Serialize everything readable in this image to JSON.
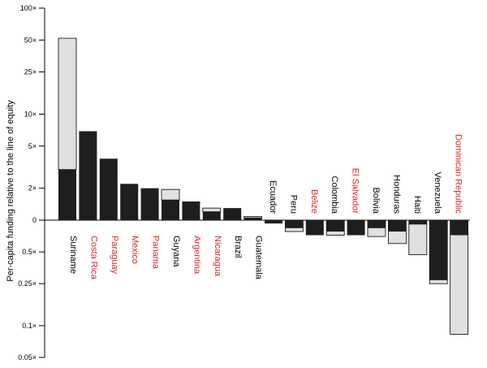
{
  "chart_data": {
    "type": "bar",
    "title": "",
    "xlabel": "",
    "ylabel": "Per-capita funding relative to the line of equity",
    "y_scale": "log",
    "ylim": [
      0.05,
      100
    ],
    "grid": false,
    "legend": "none",
    "y_ticks": [
      {
        "value": 100,
        "label": "100×"
      },
      {
        "value": 50,
        "label": "50×"
      },
      {
        "value": 25,
        "label": "25×"
      },
      {
        "value": 10,
        "label": "10×"
      },
      {
        "value": 5,
        "label": "5×"
      },
      {
        "value": 2,
        "label": "2×"
      },
      {
        "value": 1,
        "label": "0"
      },
      {
        "value": 0.5,
        "label": "0.5×"
      },
      {
        "value": 0.25,
        "label": "0.25×"
      },
      {
        "value": 0.1,
        "label": "0.1×"
      },
      {
        "value": 0.05,
        "label": "0.05×"
      }
    ],
    "categories": [
      "Suriname",
      "Costa Rica",
      "Paraguay",
      "Mexico",
      "Panama",
      "Guyana",
      "Argentina",
      "Nicaragua",
      "Brazil",
      "Guatemala",
      "Ecuador",
      "Peru",
      "Belize",
      "Colombia",
      "El Salvador",
      "Bolivia",
      "Honduras",
      "Haiti",
      "Venezuela",
      "Dominican Republic"
    ],
    "label_colors": [
      "#000000",
      "#d62728",
      "#d62728",
      "#d62728",
      "#d62728",
      "#000000",
      "#d62728",
      "#d62728",
      "#000000",
      "#000000",
      "#000000",
      "#000000",
      "#d62728",
      "#000000",
      "#d62728",
      "#000000",
      "#000000",
      "#000000",
      "#000000",
      "#d62728"
    ],
    "series": [
      {
        "values": [
          3.0,
          6.9,
          3.8,
          2.2,
          2.0,
          1.55,
          1.5,
          1.2,
          1.3,
          1.05,
          0.93,
          0.84,
          0.72,
          0.78,
          0.72,
          0.84,
          0.78,
          0.91,
          0.27,
          0.72
        ]
      },
      {
        "values": [
          52,
          6.9,
          3.8,
          2.2,
          2.0,
          1.95,
          1.5,
          1.3,
          1.3,
          1.08,
          0.93,
          0.78,
          0.72,
          0.72,
          0.72,
          0.7,
          0.6,
          0.47,
          0.25,
          0.083
        ]
      }
    ],
    "colors": {
      "dark": "#1e1e1e",
      "light": "#e0e0e0",
      "red_label": "#d62728"
    }
  }
}
